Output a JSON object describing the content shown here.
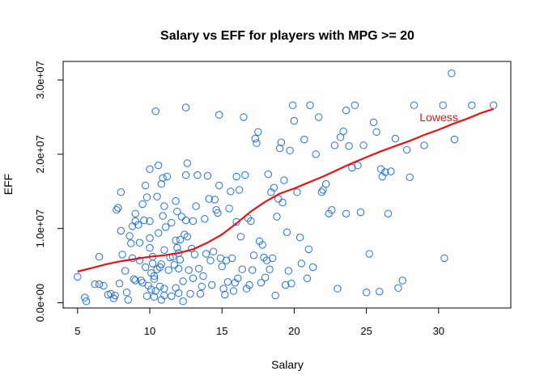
{
  "chart_data": {
    "type": "scatter",
    "title": "Salary vs EFF for players with MPG >= 20",
    "xlabel": "Salary",
    "ylabel": "EFF",
    "xlim": [
      4.0,
      35.0
    ],
    "ylim": [
      -700000,
      32500000
    ],
    "x_ticks": [
      5,
      10,
      15,
      20,
      25,
      30
    ],
    "x_tick_labels": [
      "5",
      "10",
      "15",
      "20",
      "25",
      "30"
    ],
    "y_ticks": [
      0,
      10000000,
      20000000,
      30000000
    ],
    "y_tick_labels": [
      "0.0e+00",
      "1.0e+07",
      "2.0e+07",
      "3.0e+07"
    ],
    "grid": false,
    "point_color": "#1f6fe6",
    "point_style": "open-circle",
    "lowess_color": "#e81414",
    "lowess_label": "Lowess",
    "points": [
      [
        5.0,
        3500000
      ],
      [
        5.5,
        700000
      ],
      [
        5.6,
        200000
      ],
      [
        6.2,
        2500000
      ],
      [
        6.5,
        2500000
      ],
      [
        6.5,
        6200000
      ],
      [
        6.8,
        2300000
      ],
      [
        7.1,
        1100000
      ],
      [
        7.3,
        1200000
      ],
      [
        7.5,
        600000
      ],
      [
        7.6,
        1000000
      ],
      [
        7.7,
        12500000
      ],
      [
        7.8,
        12800000
      ],
      [
        7.9,
        2600000
      ],
      [
        8.0,
        14900000
      ],
      [
        8.0,
        9700000
      ],
      [
        8.1,
        6500000
      ],
      [
        8.3,
        4300000
      ],
      [
        8.4,
        1400000
      ],
      [
        8.5,
        400000
      ],
      [
        8.6,
        9000000
      ],
      [
        8.7,
        8000000
      ],
      [
        8.8,
        6000000
      ],
      [
        8.8,
        10300000
      ],
      [
        8.9,
        3200000
      ],
      [
        9.0,
        3000000
      ],
      [
        9.0,
        11000000
      ],
      [
        9.0,
        12000000
      ],
      [
        9.2,
        10500000
      ],
      [
        9.3,
        8100000
      ],
      [
        9.3,
        5700000
      ],
      [
        9.4,
        3000000
      ],
      [
        9.5,
        2700000
      ],
      [
        9.5,
        13300000
      ],
      [
        9.6,
        11100000
      ],
      [
        9.7,
        15800000
      ],
      [
        9.7,
        4800000
      ],
      [
        9.8,
        14200000
      ],
      [
        9.8,
        900000
      ],
      [
        9.9,
        2300000
      ],
      [
        10.0,
        11000000
      ],
      [
        10.0,
        7400000
      ],
      [
        10.0,
        8700000
      ],
      [
        10.0,
        18000000
      ],
      [
        10.1,
        4000000
      ],
      [
        10.1,
        1800000
      ],
      [
        10.2,
        6200000
      ],
      [
        10.2,
        5300000
      ],
      [
        10.3,
        3600000
      ],
      [
        10.3,
        3200000
      ],
      [
        10.3,
        800000
      ],
      [
        10.4,
        1600000
      ],
      [
        10.5,
        14300000
      ],
      [
        10.5,
        4500000
      ],
      [
        10.6,
        18500000
      ],
      [
        10.6,
        9400000
      ],
      [
        10.7,
        2200000
      ],
      [
        10.7,
        4800000
      ],
      [
        10.8,
        16000000
      ],
      [
        10.8,
        5200000
      ],
      [
        10.8,
        400000
      ],
      [
        10.9,
        16800000
      ],
      [
        10.9,
        11700000
      ],
      [
        11.0,
        13000000
      ],
      [
        11.0,
        7100000
      ],
      [
        11.0,
        1900000
      ],
      [
        11.0,
        1000000
      ],
      [
        11.1,
        10200000
      ],
      [
        11.2,
        17000000
      ],
      [
        11.3,
        4400000
      ],
      [
        11.4,
        6100000
      ],
      [
        11.5,
        900000
      ],
      [
        11.5,
        10800000
      ],
      [
        11.6,
        6200000
      ],
      [
        11.7,
        5100000
      ],
      [
        11.8,
        13700000
      ],
      [
        11.8,
        8400000
      ],
      [
        11.8,
        2000000
      ],
      [
        11.9,
        12300000
      ],
      [
        11.9,
        7400000
      ],
      [
        12.0,
        1300000
      ],
      [
        12.0,
        6700000
      ],
      [
        12.0,
        4600000
      ],
      [
        12.1,
        5800000
      ],
      [
        12.1,
        8500000
      ],
      [
        12.2,
        11600000
      ],
      [
        12.3,
        2900000
      ],
      [
        12.3,
        200000
      ],
      [
        12.4,
        9200000
      ],
      [
        12.5,
        11100000
      ],
      [
        12.5,
        17200000
      ],
      [
        12.6,
        18800000
      ],
      [
        12.6,
        8900000
      ],
      [
        12.7,
        4400000
      ],
      [
        12.8,
        1200000
      ],
      [
        12.9,
        7300000
      ],
      [
        13.0,
        11000000
      ],
      [
        13.0,
        3300000
      ],
      [
        13.1,
        6500000
      ],
      [
        13.2,
        13000000
      ],
      [
        13.3,
        17200000
      ],
      [
        13.4,
        4600000
      ],
      [
        13.5,
        1200000
      ],
      [
        13.6,
        2200000
      ],
      [
        13.7,
        3600000
      ],
      [
        13.8,
        11300000
      ],
      [
        13.9,
        6600000
      ],
      [
        14.0,
        17100000
      ],
      [
        14.1,
        14000000
      ],
      [
        14.2,
        5700000
      ],
      [
        14.3,
        2400000
      ],
      [
        14.4,
        6900000
      ],
      [
        14.5,
        13900000
      ],
      [
        14.6,
        12500000
      ],
      [
        14.7,
        12100000
      ],
      [
        14.8,
        15800000
      ],
      [
        14.9,
        6000000
      ],
      [
        15.0,
        4900000
      ],
      [
        15.1,
        1900000
      ],
      [
        15.2,
        1100000
      ],
      [
        15.3,
        5700000
      ],
      [
        15.4,
        2800000
      ],
      [
        15.5,
        12700000
      ],
      [
        15.6,
        15000000
      ],
      [
        15.7,
        6000000
      ],
      [
        15.8,
        1600000
      ],
      [
        15.9,
        2700000
      ],
      [
        16.0,
        17000000
      ],
      [
        16.0,
        10900000
      ],
      [
        16.1,
        3300000
      ],
      [
        16.2,
        15200000
      ],
      [
        16.3,
        8900000
      ],
      [
        16.4,
        4500000
      ],
      [
        16.5,
        25000000
      ],
      [
        16.6,
        17200000
      ],
      [
        16.7,
        1900000
      ],
      [
        16.8,
        11400000
      ],
      [
        16.9,
        2400000
      ],
      [
        17.0,
        11000000
      ],
      [
        17.1,
        4400000
      ],
      [
        17.2,
        6400000
      ],
      [
        17.3,
        22100000
      ],
      [
        17.4,
        21500000
      ],
      [
        17.5,
        23000000
      ],
      [
        17.6,
        8300000
      ],
      [
        17.7,
        2700000
      ],
      [
        17.8,
        7800000
      ],
      [
        17.9,
        6100000
      ],
      [
        18.0,
        3400000
      ],
      [
        18.1,
        5700000
      ],
      [
        18.2,
        17300000
      ],
      [
        18.3,
        4500000
      ],
      [
        18.4,
        14900000
      ],
      [
        18.5,
        6000000
      ],
      [
        18.6,
        15500000
      ],
      [
        18.7,
        1000000
      ],
      [
        18.8,
        11600000
      ],
      [
        18.9,
        14000000
      ],
      [
        19.0,
        20800000
      ],
      [
        19.1,
        21600000
      ],
      [
        19.2,
        13500000
      ],
      [
        19.3,
        16500000
      ],
      [
        19.4,
        2400000
      ],
      [
        19.5,
        9500000
      ],
      [
        19.6,
        4300000
      ],
      [
        19.7,
        20500000
      ],
      [
        19.8,
        2600000
      ],
      [
        19.9,
        26600000
      ],
      [
        20.0,
        24500000
      ],
      [
        20.2,
        14900000
      ],
      [
        20.4,
        8800000
      ],
      [
        20.5,
        5300000
      ],
      [
        20.7,
        22000000
      ],
      [
        20.9,
        3300000
      ],
      [
        21.0,
        7200000
      ],
      [
        21.1,
        26600000
      ],
      [
        21.3,
        4800000
      ],
      [
        21.5,
        20000000
      ],
      [
        21.7,
        25000000
      ],
      [
        21.9,
        14900000
      ],
      [
        22.0,
        15200000
      ],
      [
        22.2,
        16000000
      ],
      [
        22.4,
        12000000
      ],
      [
        22.6,
        12500000
      ],
      [
        22.8,
        21200000
      ],
      [
        23.0,
        1900000
      ],
      [
        23.2,
        22300000
      ],
      [
        23.4,
        23100000
      ],
      [
        23.6,
        12000000
      ],
      [
        23.8,
        21100000
      ],
      [
        24.0,
        18200000
      ],
      [
        24.2,
        26600000
      ],
      [
        24.4,
        18500000
      ],
      [
        24.6,
        12200000
      ],
      [
        24.8,
        21200000
      ],
      [
        25.0,
        1400000
      ],
      [
        25.2,
        6600000
      ],
      [
        25.5,
        24300000
      ],
      [
        25.7,
        23000000
      ],
      [
        25.9,
        1500000
      ],
      [
        26.1,
        17000000
      ],
      [
        26.3,
        17600000
      ],
      [
        26.5,
        12000000
      ],
      [
        26.7,
        17700000
      ],
      [
        27.0,
        22100000
      ],
      [
        27.2,
        2000000
      ],
      [
        27.5,
        3000000
      ],
      [
        28.0,
        16900000
      ],
      [
        28.3,
        26600000
      ],
      [
        29.0,
        21200000
      ],
      [
        30.3,
        26600000
      ],
      [
        30.4,
        6000000
      ],
      [
        30.9,
        30900000
      ],
      [
        31.1,
        22000000
      ],
      [
        32.3,
        26600000
      ],
      [
        33.8,
        26600000
      ],
      [
        27.8,
        20600000
      ],
      [
        26.0,
        18000000
      ],
      [
        23.6,
        25900000
      ],
      [
        14.8,
        25300000
      ],
      [
        12.5,
        26300000
      ],
      [
        10.4,
        25800000
      ]
    ],
    "lowess": [
      [
        5.0,
        4200000
      ],
      [
        6.0,
        4700000
      ],
      [
        7.0,
        5200000
      ],
      [
        8.0,
        5600000
      ],
      [
        9.0,
        5900000
      ],
      [
        10.0,
        6200000
      ],
      [
        11.0,
        6400000
      ],
      [
        12.0,
        6700000
      ],
      [
        13.0,
        7200000
      ],
      [
        14.0,
        8100000
      ],
      [
        15.0,
        9200000
      ],
      [
        16.0,
        10700000
      ],
      [
        17.0,
        12300000
      ],
      [
        18.0,
        13600000
      ],
      [
        19.0,
        14700000
      ],
      [
        20.0,
        15400000
      ],
      [
        21.0,
        16200000
      ],
      [
        22.0,
        17000000
      ],
      [
        23.0,
        17900000
      ],
      [
        24.0,
        18800000
      ],
      [
        25.0,
        19600000
      ],
      [
        26.0,
        20400000
      ],
      [
        27.0,
        21100000
      ],
      [
        28.0,
        21800000
      ],
      [
        29.0,
        22600000
      ],
      [
        30.0,
        23300000
      ],
      [
        31.0,
        24100000
      ],
      [
        32.0,
        24800000
      ],
      [
        33.0,
        25600000
      ],
      [
        33.8,
        26100000
      ]
    ]
  }
}
